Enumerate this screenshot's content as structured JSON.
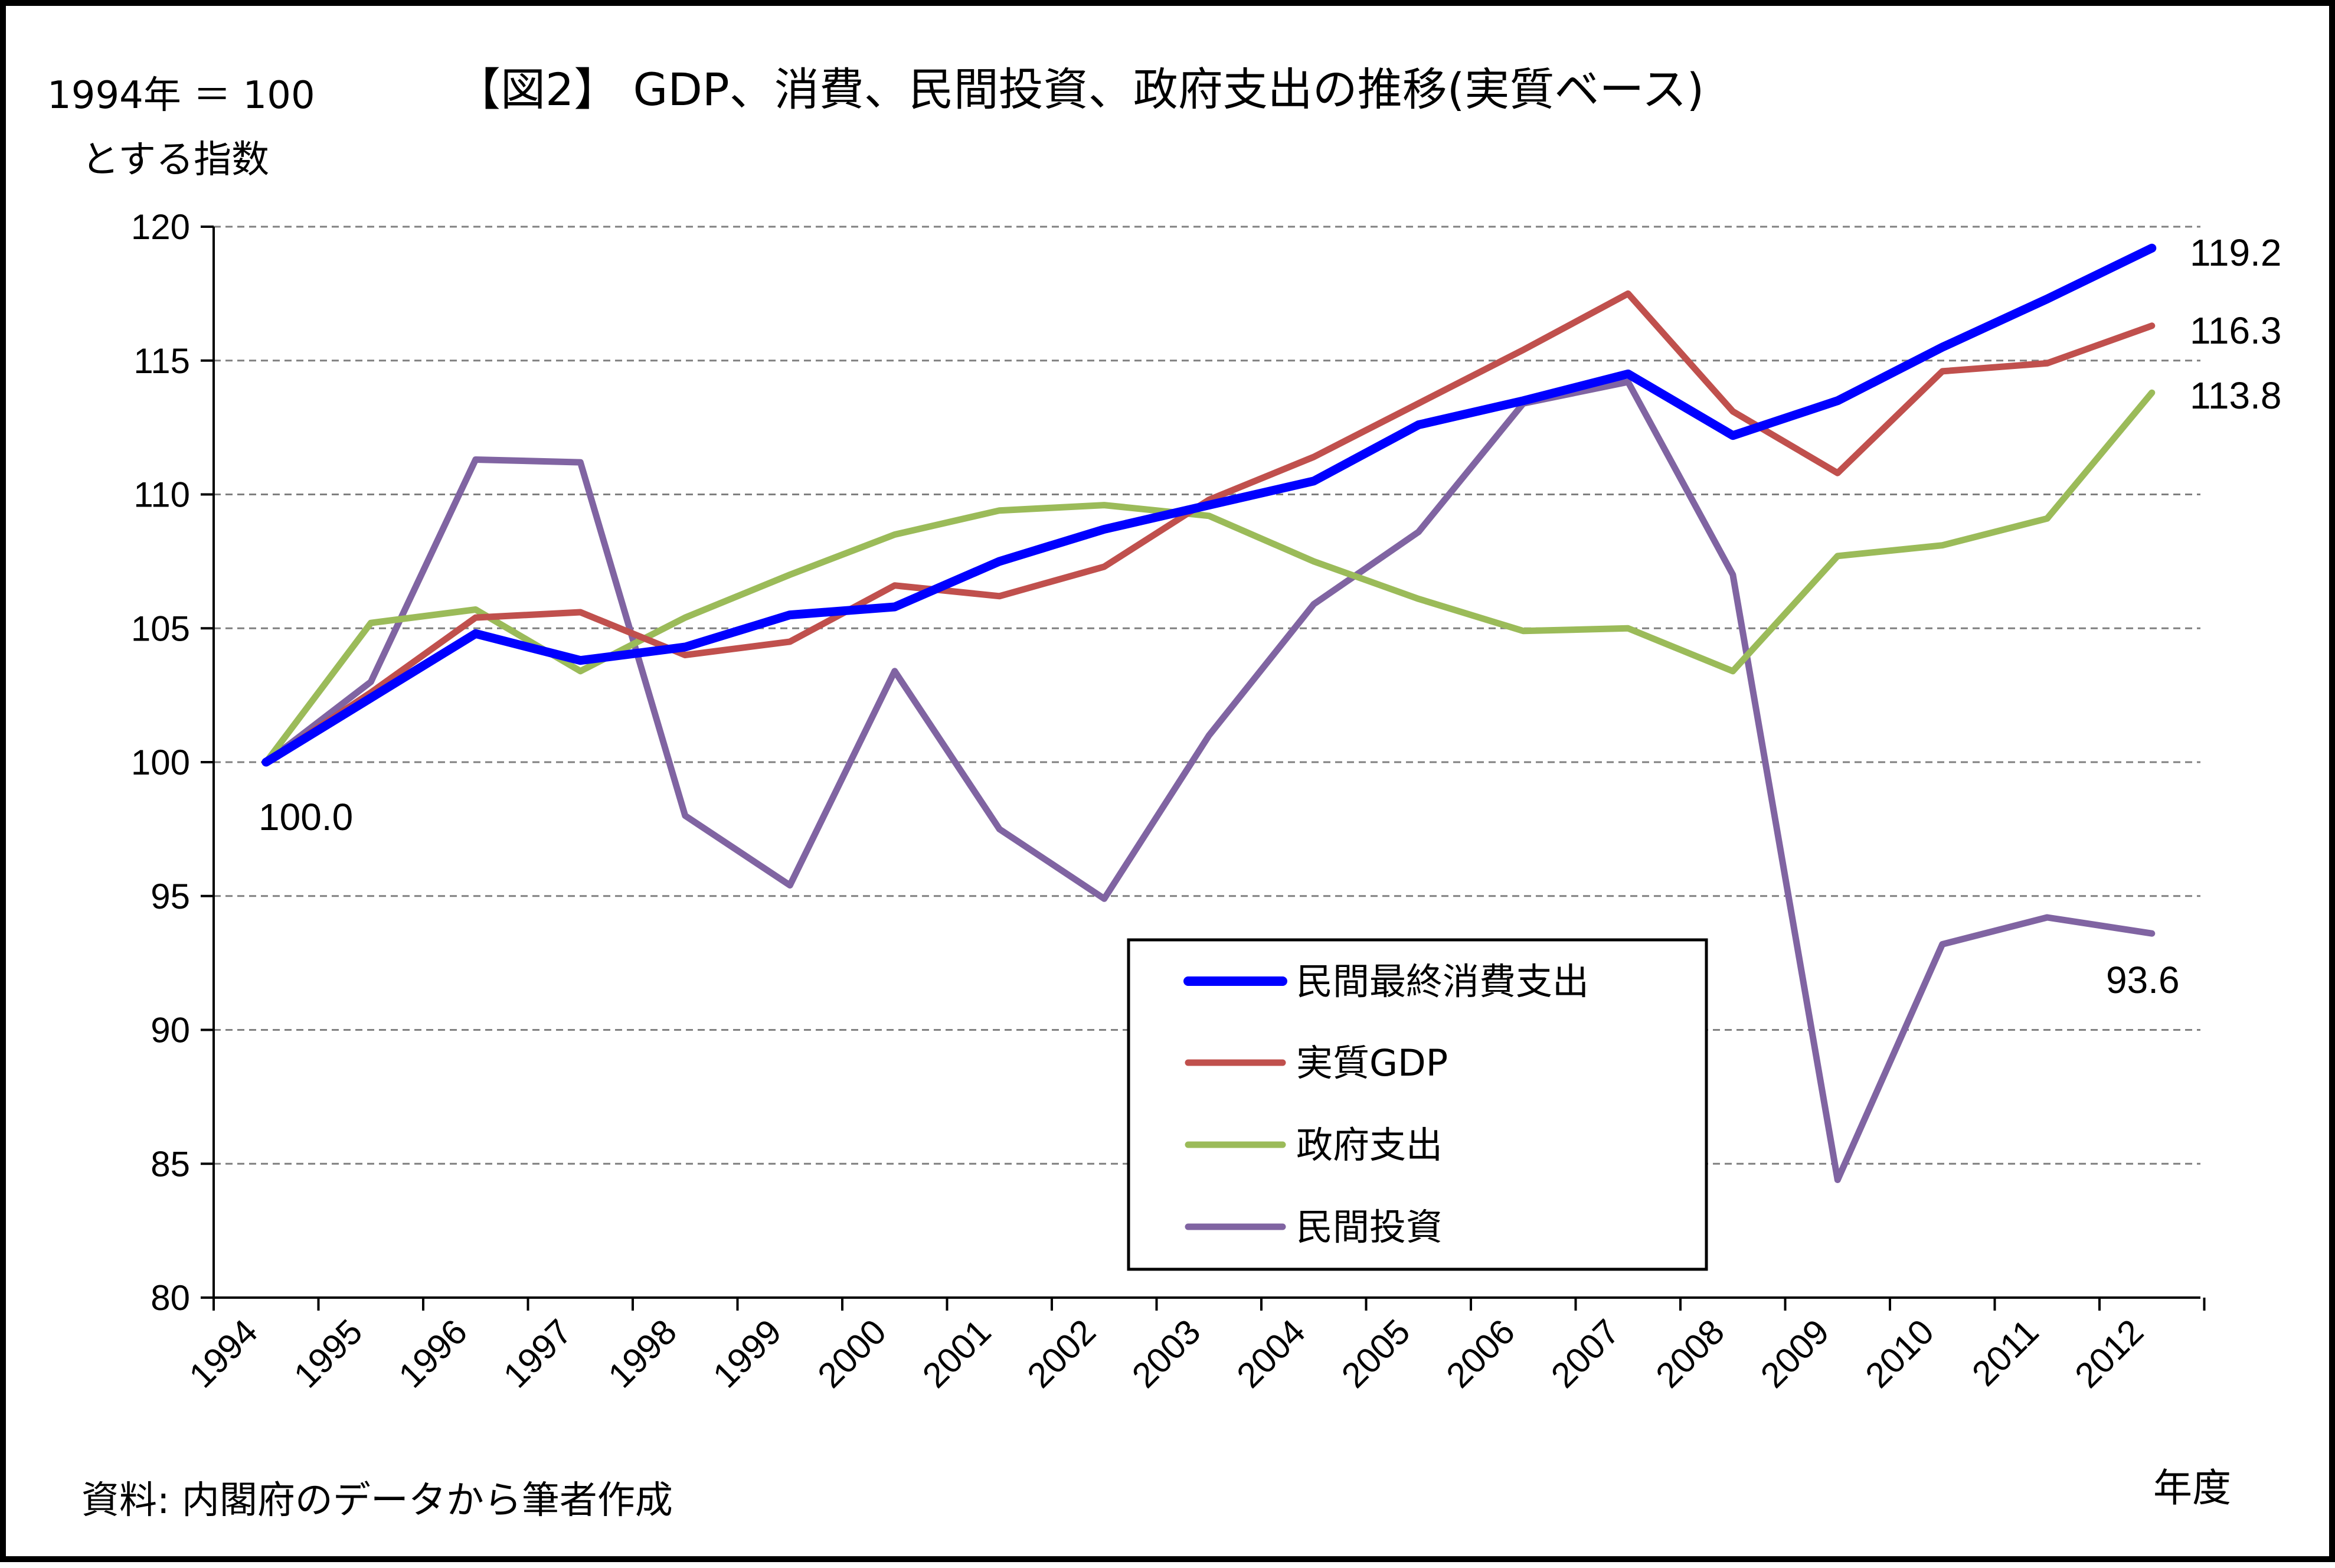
{
  "title": "【図2】 GDP、消費、民間投資、政府支出の推移(実質ベース)",
  "y_unit_line1": "1994年 ＝ 100",
  "y_unit_line2": "とする指数",
  "x_unit": "年度",
  "source": "資料: 内閣府のデータから筆者作成",
  "colors": {
    "consumption": "#0000ff",
    "gdp": "#c0504d",
    "government": "#9bbb59",
    "investment": "#8064a2"
  },
  "chart_data": {
    "type": "line",
    "title": "【図2】 GDP、消費、民間投資、政府支出の推移(実質ベース)",
    "ylabel": "1994年 ＝ 100 とする指数",
    "xlabel": "年度",
    "ylim": [
      80,
      120
    ],
    "yticks": [
      "80",
      "85",
      "90",
      "95",
      "100",
      "105",
      "110",
      "115",
      "120"
    ],
    "categories": [
      "1994",
      "1995",
      "1996",
      "1997",
      "1998",
      "1999",
      "2000",
      "2001",
      "2002",
      "2003",
      "2004",
      "2005",
      "2006",
      "2007",
      "2008",
      "2009",
      "2010",
      "2011",
      "2012"
    ],
    "grid": true,
    "legend_position": "bottom-center",
    "series": [
      {
        "name": "民間最終消費支出",
        "color": "#0000ff",
        "values": [
          100.0,
          102.4,
          104.8,
          103.8,
          104.3,
          105.5,
          105.8,
          107.5,
          108.7,
          109.6,
          110.5,
          112.6,
          113.5,
          114.5,
          112.2,
          113.5,
          115.5,
          117.3,
          119.2
        ]
      },
      {
        "name": "実質GDP",
        "color": "#c0504d",
        "values": [
          100.0,
          102.6,
          105.4,
          105.6,
          104.0,
          104.5,
          106.6,
          106.2,
          107.3,
          109.8,
          111.4,
          113.4,
          115.4,
          117.5,
          113.1,
          110.8,
          114.6,
          114.9,
          116.3
        ]
      },
      {
        "name": "政府支出",
        "color": "#9bbb59",
        "values": [
          100.0,
          105.2,
          105.7,
          103.4,
          105.4,
          107.0,
          108.5,
          109.4,
          109.6,
          109.2,
          107.5,
          106.1,
          104.9,
          105.0,
          103.4,
          107.7,
          108.1,
          109.1,
          113.8
        ]
      },
      {
        "name": "民間投資",
        "color": "#8064a2",
        "values": [
          100.0,
          103.0,
          111.3,
          111.2,
          98.0,
          95.4,
          103.4,
          97.5,
          94.9,
          101.0,
          105.9,
          108.6,
          113.4,
          114.2,
          107.0,
          84.4,
          93.2,
          94.2,
          93.6
        ]
      }
    ],
    "annotations": [
      "100.0",
      "119.2",
      "116.3",
      "113.8",
      "93.6"
    ]
  },
  "start_label": "100.0",
  "end_labels": {
    "consumption": "119.2",
    "gdp": "116.3",
    "government": "113.8",
    "investment": "93.6"
  }
}
